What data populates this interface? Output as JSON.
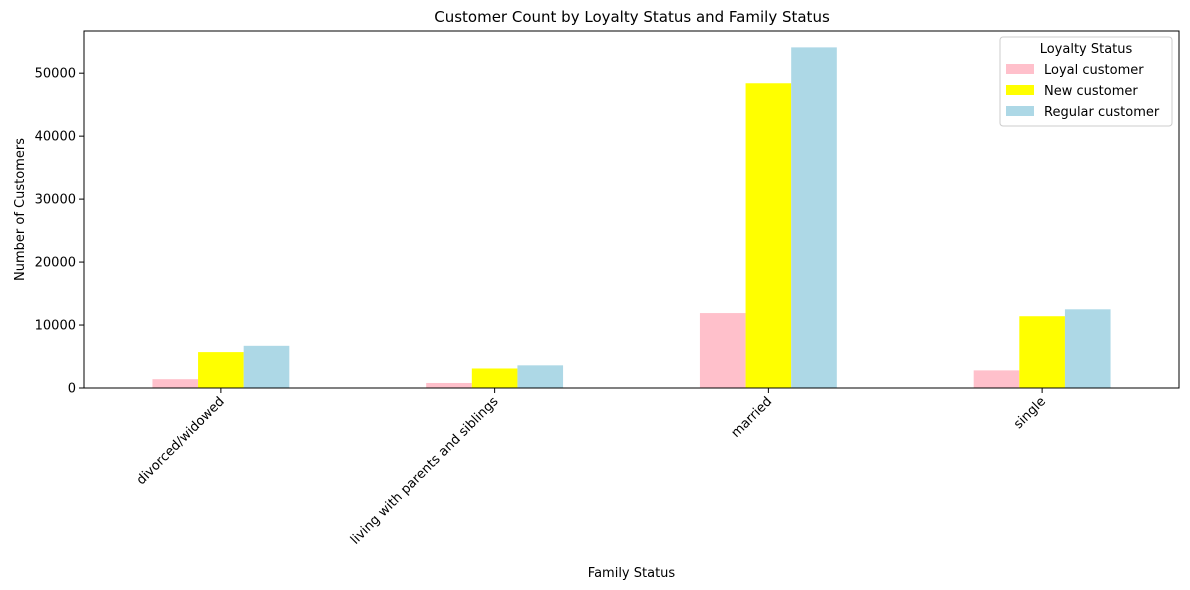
{
  "chart_data": {
    "type": "bar",
    "title": "Customer Count by Loyalty Status and Family Status",
    "xlabel": "Family Status",
    "ylabel": "Number of Customers",
    "categories": [
      "divorced/widowed",
      "living with parents and siblings",
      "married",
      "single"
    ],
    "series": [
      {
        "name": "Loyal customer",
        "color": "#ffc0cb",
        "values": [
          1400,
          800,
          11900,
          2800
        ]
      },
      {
        "name": "New customer",
        "color": "#ffff00",
        "values": [
          5700,
          3100,
          48400,
          11400
        ]
      },
      {
        "name": "Regular customer",
        "color": "#add8e6",
        "values": [
          6700,
          3600,
          54100,
          12500
        ]
      }
    ],
    "ylim": [
      0,
      56700
    ],
    "yticks": [
      0,
      10000,
      20000,
      30000,
      40000,
      50000
    ],
    "ytick_labels": [
      "0",
      "10000",
      "20000",
      "30000",
      "40000",
      "50000"
    ],
    "legend": {
      "title": "Loyalty Status",
      "position": "top-right"
    },
    "grid": false
  }
}
